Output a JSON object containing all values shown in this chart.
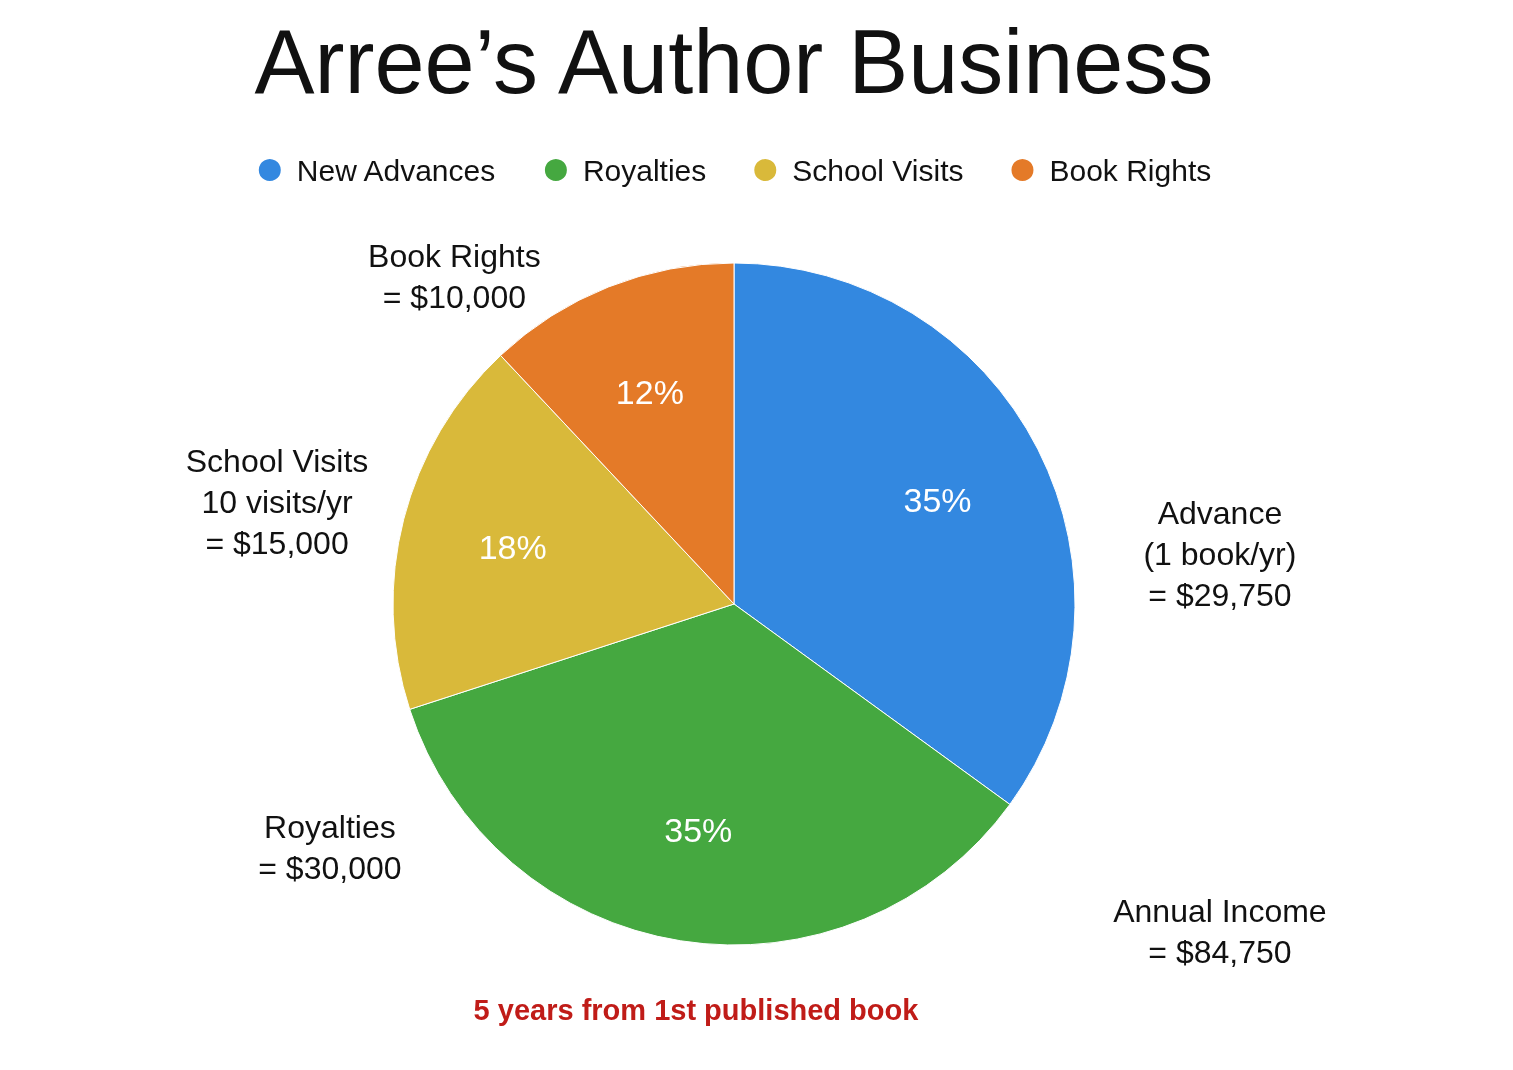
{
  "chart_data": {
    "type": "pie",
    "title": "Arree’s Author Business",
    "categories": [
      "New Advances",
      "Royalties",
      "School Visits",
      "Book Rights"
    ],
    "values": [
      35,
      35,
      18,
      12
    ],
    "colors": [
      "#3388e0",
      "#45a840",
      "#d9b93a",
      "#e47a28"
    ],
    "value_labels": [
      "35%",
      "35%",
      "18%",
      "12%"
    ],
    "legend": "top",
    "annotations": [
      "Advance\n(1 book/yr)\n= $29,750",
      "Royalties\n= $30,000",
      "School Visits\n10 visits/yr\n= $15,000",
      "Book Rights\n= $10,000",
      "Annual Income\n= $84,750",
      "5 years from 1st published book"
    ]
  }
}
